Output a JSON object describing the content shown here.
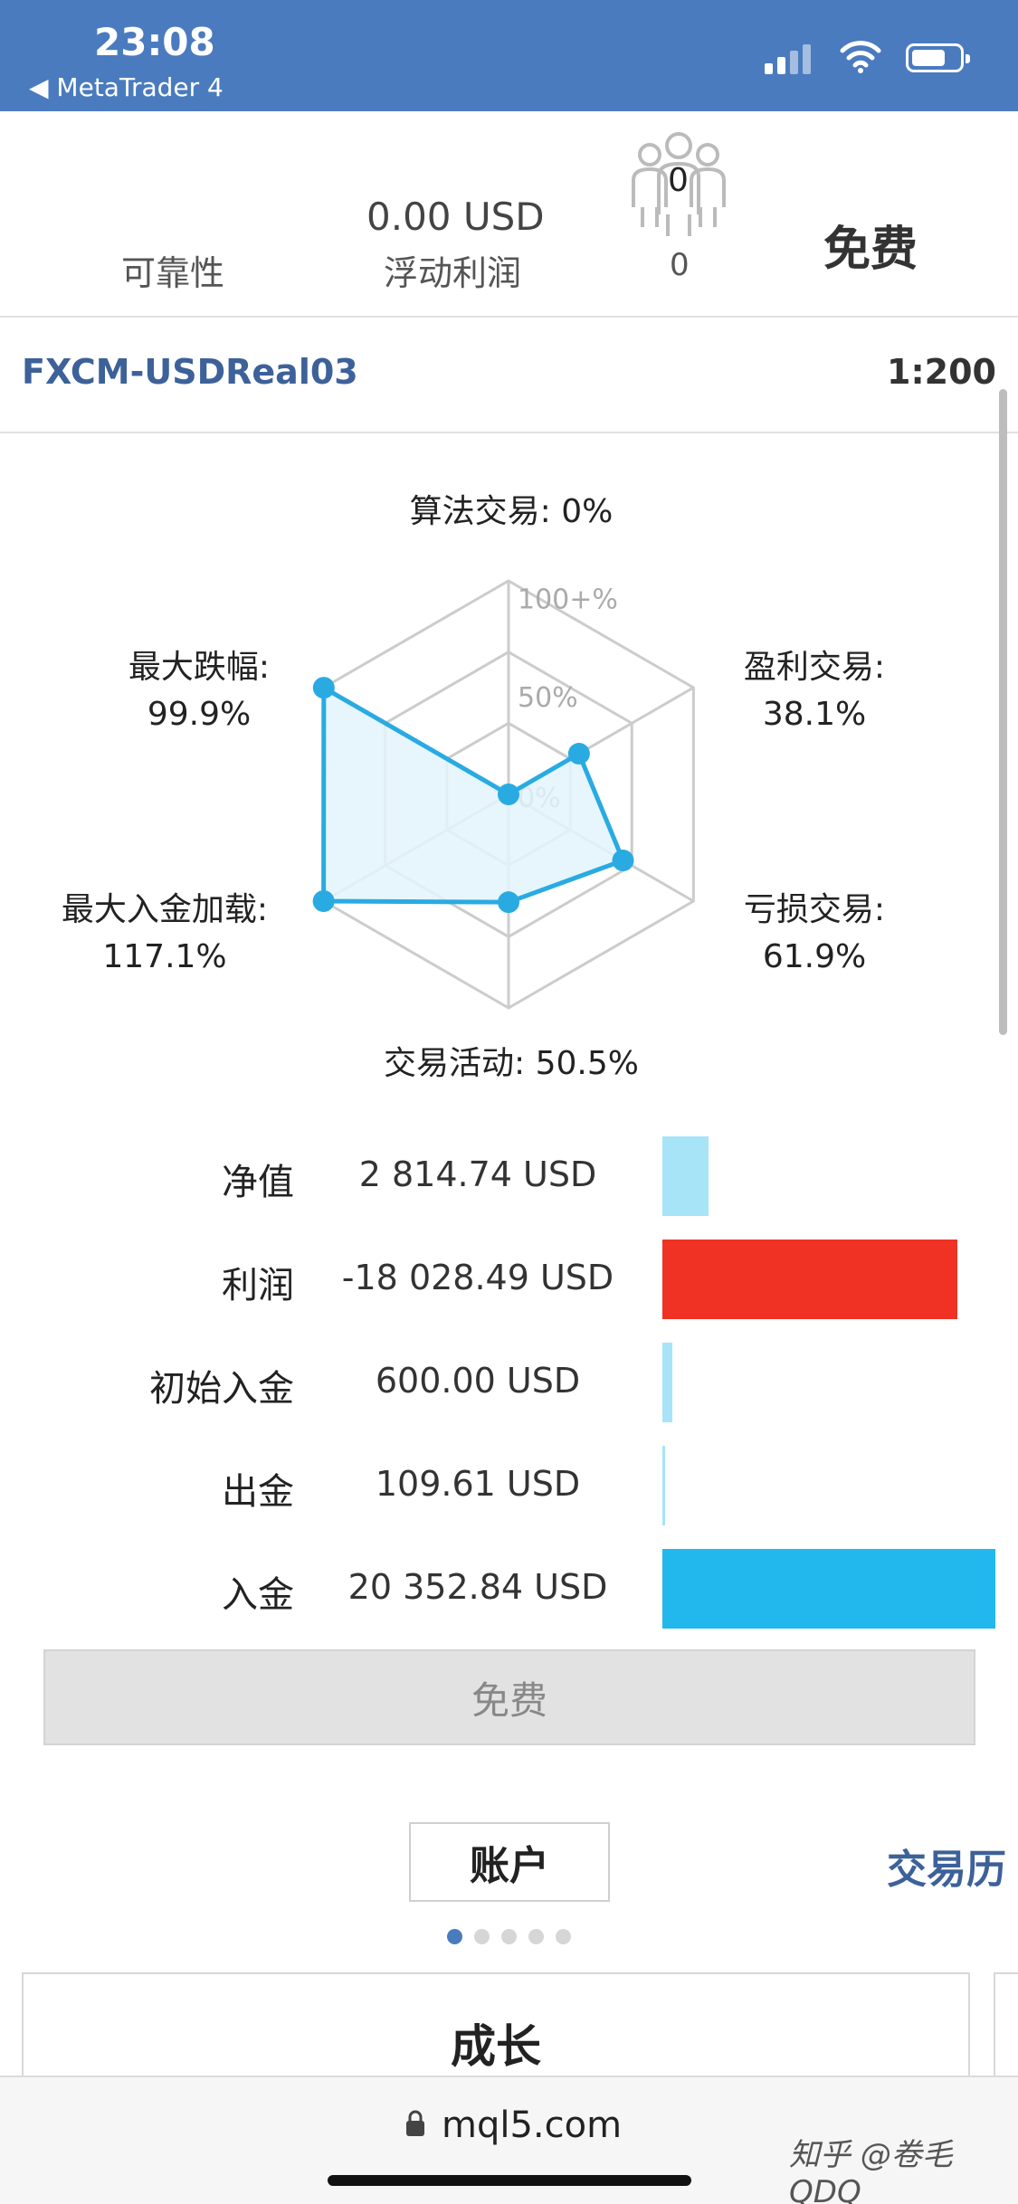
{
  "status_bar": {
    "time": "23:08",
    "back_label": "◀ MetaTrader 4"
  },
  "stats": {
    "reliability_label": "可靠性",
    "floating_profit_value": "0.00 USD",
    "floating_profit_label": "浮动利润",
    "subscribers_icon_count": "0",
    "subscribers_count": "0",
    "price": "免费"
  },
  "server": {
    "name": "FXCM-USDReal03",
    "leverage": "1:200"
  },
  "radar": {
    "algo_trading": "算法交易: 0%",
    "ring_100": "100+%",
    "ring_50": "50%",
    "ring_0": "0%",
    "profit_trades_label": "盈利交易:",
    "profit_trades_value": "38.1%",
    "loss_trades_label": "亏损交易:",
    "loss_trades_value": "61.9%",
    "trading_activity": "交易活动: 50.5%",
    "max_deposit_load_label": "最大入金加载:",
    "max_deposit_load_value": "117.1%",
    "max_drawdown_label": "最大跌幅:",
    "max_drawdown_value": "99.9%",
    "values": {
      "algo": 0,
      "profit": 38.1,
      "loss": 61.9,
      "activity": 50.5,
      "deposit_load": 117.1,
      "drawdown": 99.9
    },
    "colors": {
      "line": "#29abe2",
      "fill": "#e3f5fc",
      "grid": "#cccccc"
    }
  },
  "finance": [
    {
      "label": "净值",
      "value": "2 814.74 USD",
      "bar_fraction": 0.138,
      "color": "#a8e4f7"
    },
    {
      "label": "利润",
      "value": "-18 028.49 USD",
      "bar_fraction": 0.886,
      "color": "#ef3224"
    },
    {
      "label": "初始入金",
      "value": "600.00 USD",
      "bar_fraction": 0.029,
      "color": "#a8e4f7"
    },
    {
      "label": "出金",
      "value": "109.61 USD",
      "bar_fraction": 0.005,
      "color": "#a8e4f7"
    },
    {
      "label": "入金",
      "value": "20 352.84 USD",
      "bar_fraction": 1.0,
      "color": "#22b8ee"
    }
  ],
  "free_button": "免费",
  "tabs": {
    "account": "账户",
    "history": "交易历"
  },
  "card": {
    "title": "成长"
  },
  "browser": {
    "url": "mql5.com",
    "watermark": "知乎 @卷毛QDQ"
  }
}
